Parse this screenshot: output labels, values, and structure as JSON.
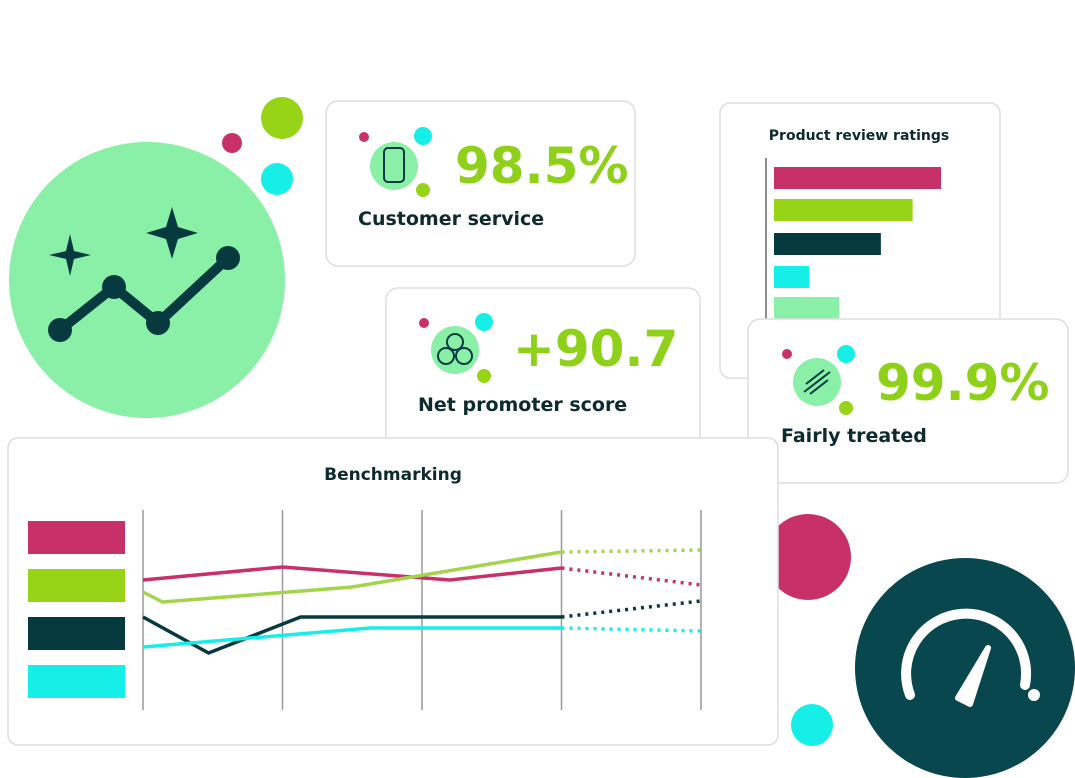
{
  "cards": [
    {
      "value": "98.5%",
      "label": "Customer service"
    },
    {
      "value": "+90.7",
      "label": "Net promoter score"
    },
    {
      "value": "99.9%",
      "label": "Fairly treated"
    }
  ],
  "chart_data": [
    {
      "type": "bar",
      "title": "Product review ratings",
      "categories": [
        null,
        null,
        null,
        null,
        null
      ],
      "values": [
        100,
        83,
        64,
        21,
        39
      ],
      "colors": [
        "#c8306a",
        "#97d316",
        "#073a3f",
        "#15efe8",
        "#8af0a8"
      ],
      "xlim": [
        0,
        100
      ]
    },
    {
      "type": "line",
      "title": "Benchmarking",
      "xlim": [
        0,
        4
      ],
      "xticks": [
        0,
        1,
        2,
        3,
        4
      ],
      "ylim": [
        0,
        100
      ],
      "forecast_from": 3,
      "series": [
        {
          "color": "#c8306a",
          "x": [
            0,
            1,
            2.2,
            3,
            4
          ],
          "values": [
            65,
            71.5,
            65,
            71,
            62.5
          ]
        },
        {
          "color": "#a3d44a",
          "x": [
            0,
            0.14,
            1.5,
            3,
            4
          ],
          "values": [
            59,
            54,
            61.5,
            79,
            80
          ]
        },
        {
          "color": "#073a3f",
          "x": [
            0,
            0.47,
            1.13,
            3,
            4
          ],
          "values": [
            46.5,
            28.5,
            46.5,
            46.5,
            54.5
          ]
        },
        {
          "color": "#15efe8",
          "x": [
            0,
            1.63,
            3,
            4
          ],
          "values": [
            31.5,
            41,
            41,
            39.5
          ]
        }
      ]
    }
  ]
}
